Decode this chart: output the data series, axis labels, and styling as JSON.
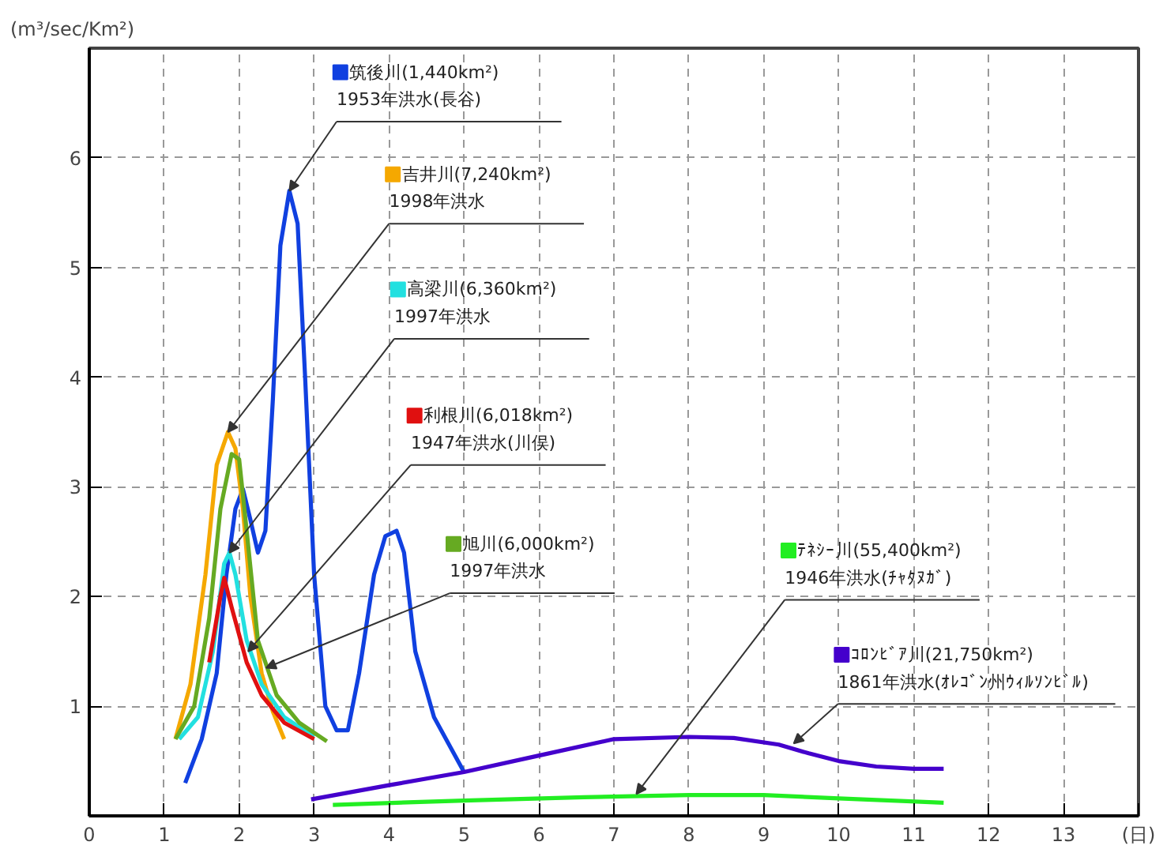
{
  "chart_data": {
    "type": "line",
    "ylabel": "(m³/sec/Km²)",
    "xlim": [
      0,
      14
    ],
    "ylim": [
      0,
      7
    ],
    "xticks": [
      0,
      1,
      2,
      3,
      4,
      5,
      6,
      7,
      8,
      9,
      10,
      11,
      12,
      13,
      {
        "value": 14,
        "label": "(日)"
      }
    ],
    "yticks": [
      1,
      2,
      3,
      4,
      5,
      6
    ],
    "grid": true,
    "legend": "top right",
    "line_style": "solid",
    "marker": "none",
    "series": [
      {
        "name": "筑後川(1,440km²)",
        "color": "#1040e0",
        "x": [
          1.28,
          1.5,
          1.7,
          1.83,
          1.95,
          2.05,
          2.15,
          2.25,
          2.35,
          2.45,
          2.55,
          2.67,
          2.78,
          2.88,
          3.0,
          3.15,
          3.3,
          3.45,
          3.6,
          3.8,
          3.95,
          4.1,
          4.2,
          4.35,
          4.6,
          5.0
        ],
        "values": [
          0.3,
          0.7,
          1.3,
          2.2,
          2.8,
          2.98,
          2.7,
          2.4,
          2.6,
          3.8,
          5.2,
          5.7,
          5.4,
          4.0,
          2.2,
          1.0,
          0.78,
          0.78,
          1.3,
          2.2,
          2.55,
          2.6,
          2.4,
          1.5,
          0.9,
          0.4
        ]
      },
      {
        "name": "吉井川(7,240km²)",
        "color": "#f5a800",
        "x": [
          1.15,
          1.35,
          1.55,
          1.7,
          1.85,
          1.95,
          2.05,
          2.15,
          2.3,
          2.45,
          2.6
        ],
        "values": [
          0.7,
          1.2,
          2.2,
          3.2,
          3.5,
          3.35,
          2.8,
          2.0,
          1.3,
          0.95,
          0.7
        ]
      },
      {
        "name": "高梁川(6,360km²)",
        "color": "#22e0e0",
        "x": [
          1.2,
          1.45,
          1.65,
          1.8,
          1.87,
          1.95,
          2.1,
          2.3,
          2.6,
          3.0
        ],
        "values": [
          0.7,
          0.9,
          1.5,
          2.3,
          2.4,
          2.2,
          1.6,
          1.2,
          0.9,
          0.72
        ]
      },
      {
        "name": "利根川(6,018km²)",
        "color": "#e01010",
        "x": [
          1.6,
          1.75,
          1.8,
          1.9,
          2.1,
          2.3,
          2.6,
          3.0
        ],
        "values": [
          1.4,
          2.0,
          2.17,
          1.9,
          1.4,
          1.1,
          0.85,
          0.7
        ]
      },
      {
        "name": "旭川(6,000km²)",
        "color": "#66aa22",
        "x": [
          1.15,
          1.4,
          1.6,
          1.75,
          1.9,
          2.0,
          2.1,
          2.25,
          2.5,
          2.8,
          3.17
        ],
        "values": [
          0.7,
          1.0,
          1.8,
          2.8,
          3.3,
          3.25,
          2.6,
          1.6,
          1.1,
          0.85,
          0.68
        ]
      },
      {
        "name": "ﾃﾈｼｰ川(55,400km²)",
        "color": "#22ee22",
        "x": [
          3.25,
          5,
          6.6,
          8,
          9,
          10,
          11.4
        ],
        "values": [
          0.1,
          0.14,
          0.17,
          0.19,
          0.19,
          0.16,
          0.12
        ]
      },
      {
        "name": "ｺﾛﾝﾋﾞｱ川(21,750km²)",
        "color": "#4400cc",
        "x": [
          2.96,
          4,
          5,
          6,
          7,
          8,
          8.6,
          9.2,
          9.6,
          10,
          10.5,
          11,
          11.4
        ],
        "values": [
          0.15,
          0.28,
          0.4,
          0.55,
          0.7,
          0.72,
          0.71,
          0.65,
          0.57,
          0.5,
          0.45,
          0.43,
          0.43
        ]
      }
    ],
    "annotations": [
      {
        "text": "1953年洪水(長谷)",
        "x": 2.67,
        "y": 5.7
      },
      {
        "text": "1998年洪水",
        "x": 1.85,
        "y": 3.5
      },
      {
        "text": "1997年洪水",
        "x": 1.87,
        "y": 2.4
      },
      {
        "text": "1947年洪水(川俣)",
        "x": 2.12,
        "y": 1.5
      },
      {
        "text": "1997年洪水",
        "x": 2.36,
        "y": 1.35
      },
      {
        "text": "1946年洪水(ﾁｬﾀﾇｶﾞ)",
        "x": 7.3,
        "y": 0.2
      },
      {
        "text": "1861年洪水(ｵﾚｺﾞﾝ州ｳｨﾙｿﾝﾋﾞﾙ)",
        "x": 9.4,
        "y": 0.66
      }
    ]
  }
}
